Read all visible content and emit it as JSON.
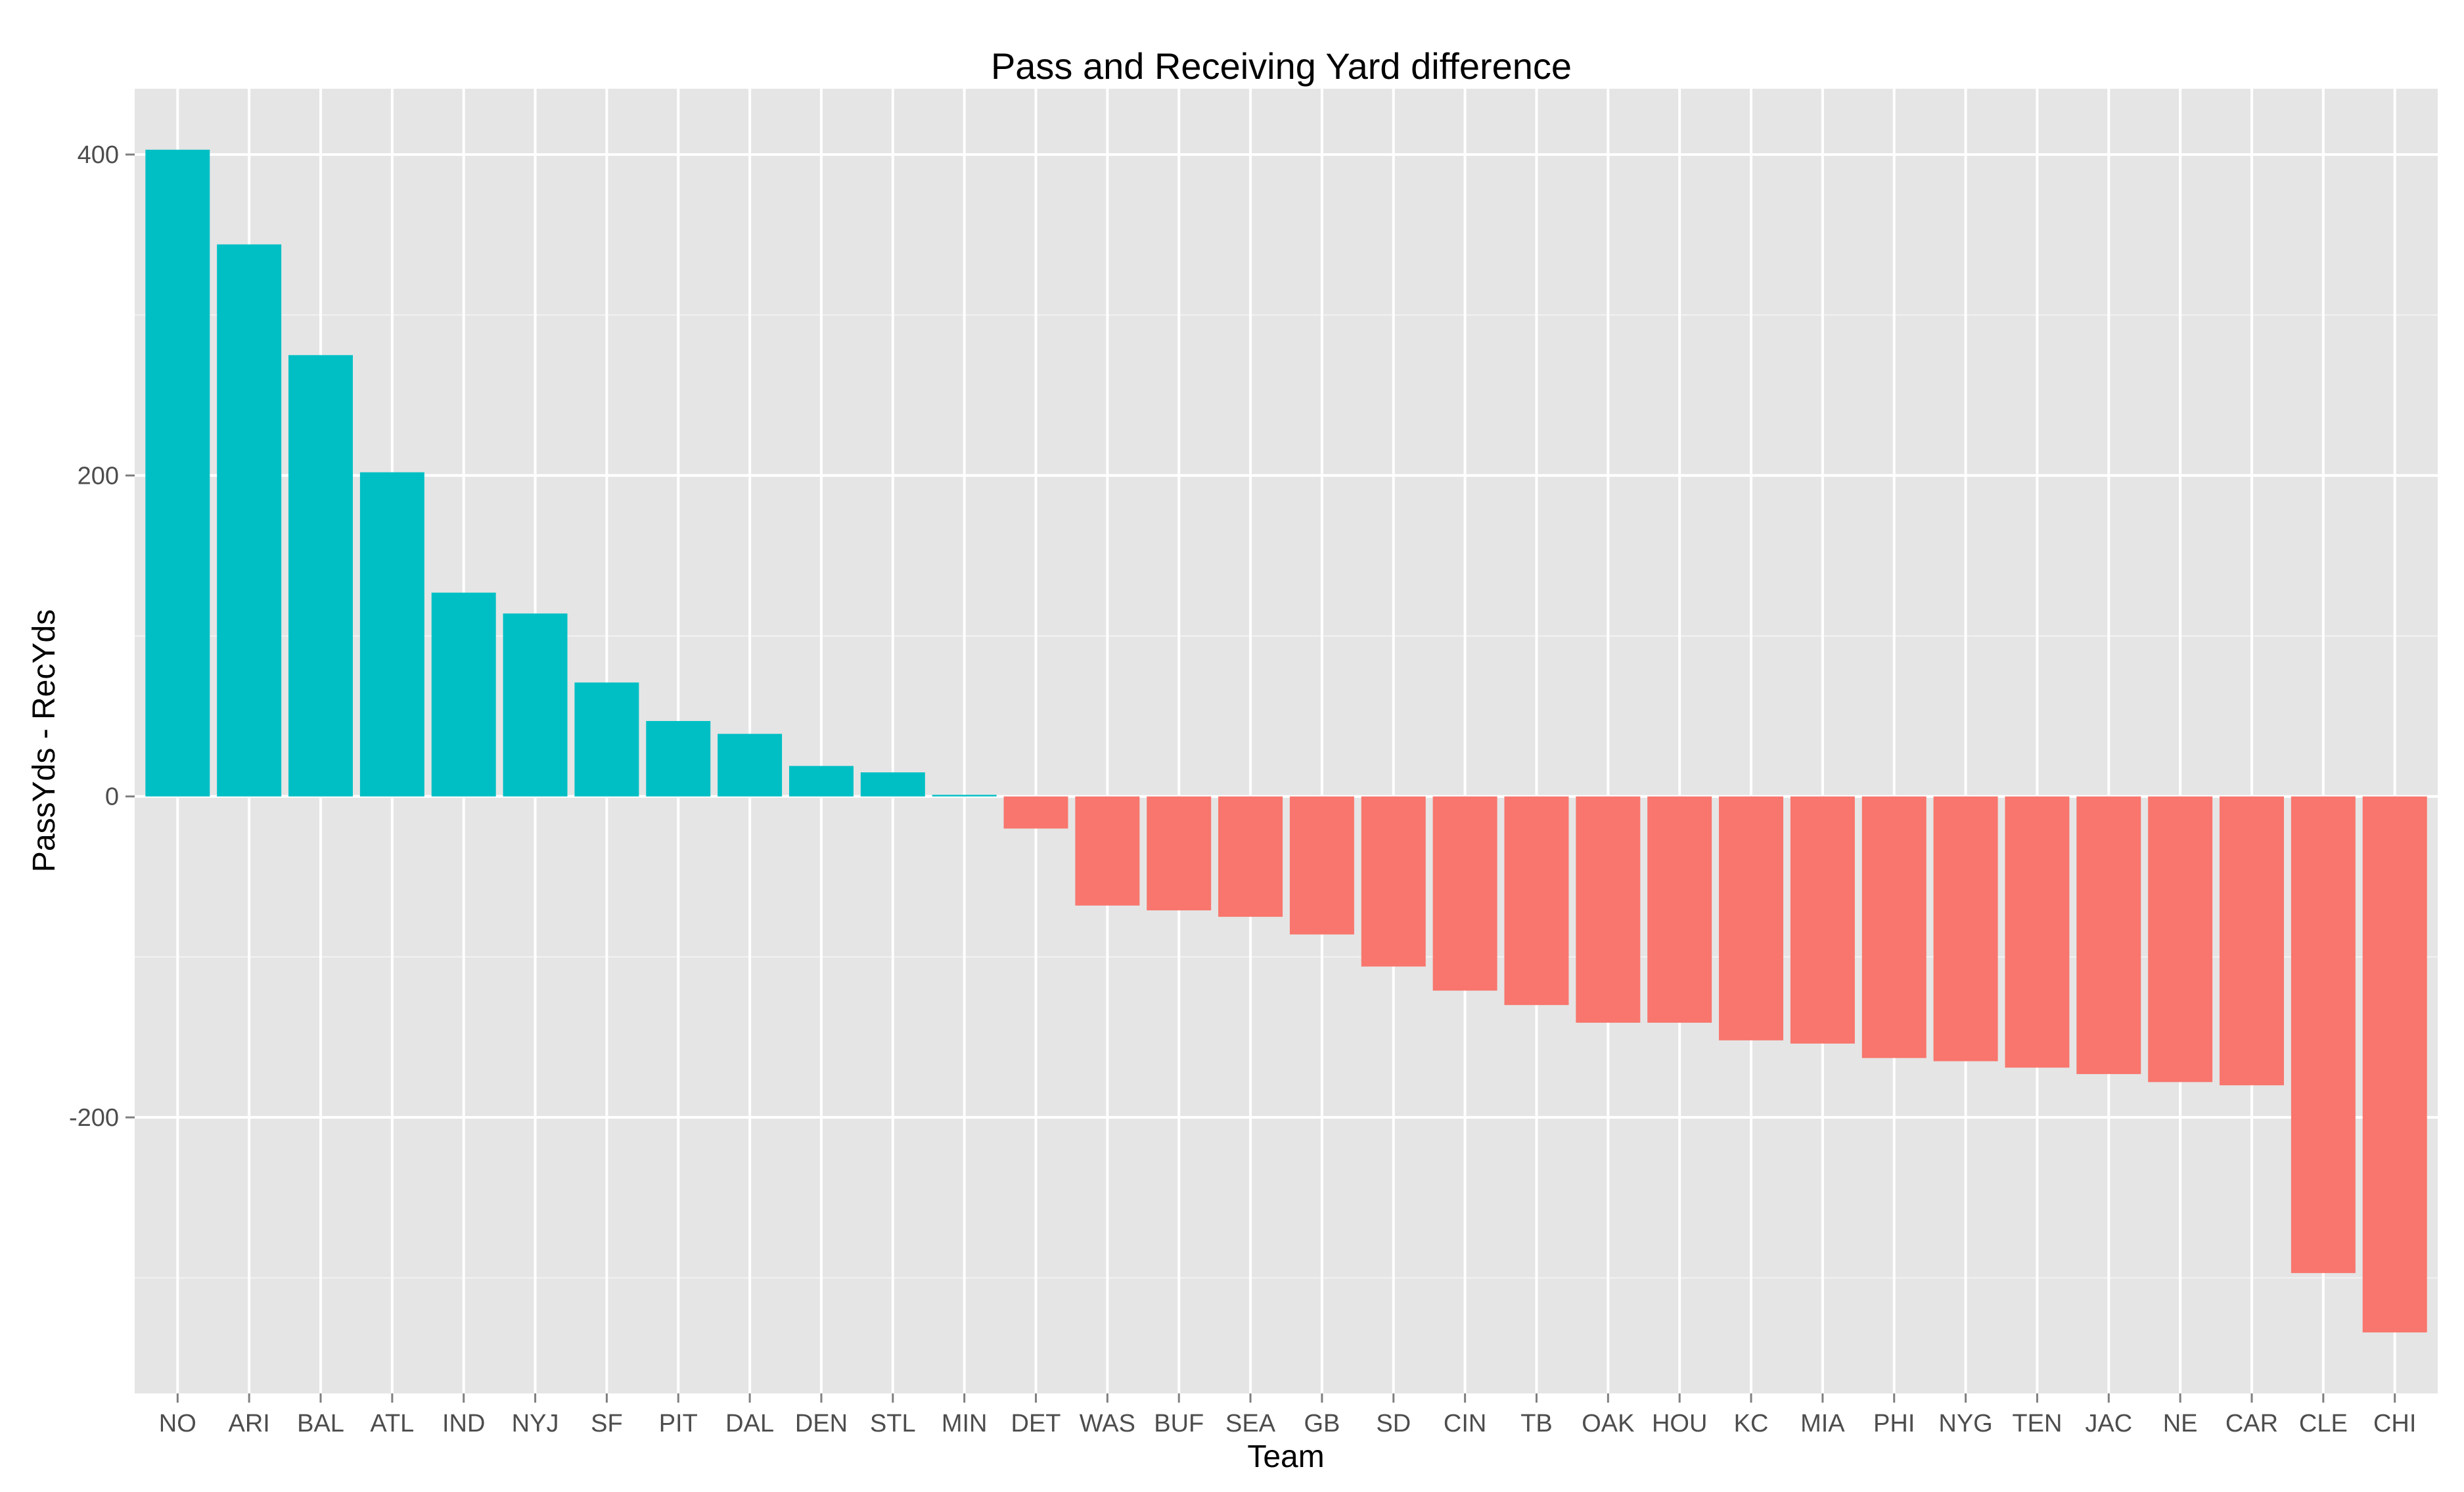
{
  "chart_data": {
    "type": "bar",
    "title": "Pass and Receiving Yard difference",
    "xlabel": "Team",
    "ylabel": "PassYds - RecYds",
    "categories": [
      "NO",
      "ARI",
      "BAL",
      "ATL",
      "IND",
      "NYJ",
      "SF",
      "PIT",
      "DAL",
      "DEN",
      "STL",
      "MIN",
      "DET",
      "WAS",
      "BUF",
      "SEA",
      "GB",
      "SD",
      "CIN",
      "TB",
      "OAK",
      "HOU",
      "KC",
      "MIA",
      "PHI",
      "NYG",
      "TEN",
      "JAC",
      "NE",
      "CAR",
      "CLE",
      "CHI"
    ],
    "values": [
      403,
      344,
      275,
      202,
      127,
      114,
      71,
      47,
      39,
      19,
      15,
      1,
      -20,
      -68,
      -71,
      -75,
      -86,
      -106,
      -121,
      -130,
      -141,
      -141,
      -152,
      -154,
      -163,
      -165,
      -169,
      -173,
      -178,
      -180,
      -297,
      -334
    ],
    "ylim": [
      -372,
      441
    ],
    "yticks": [
      -200,
      0,
      200,
      400
    ],
    "ytick_labels": [
      "-200",
      "0",
      "200",
      "400"
    ],
    "grid": true,
    "legend": "none",
    "colors": {
      "positive": "#00BFC4",
      "negative": "#F8766D",
      "panel": "#E5E5E5",
      "grid_major": "#FFFFFF",
      "grid_minor": "#F2F2F2"
    }
  }
}
